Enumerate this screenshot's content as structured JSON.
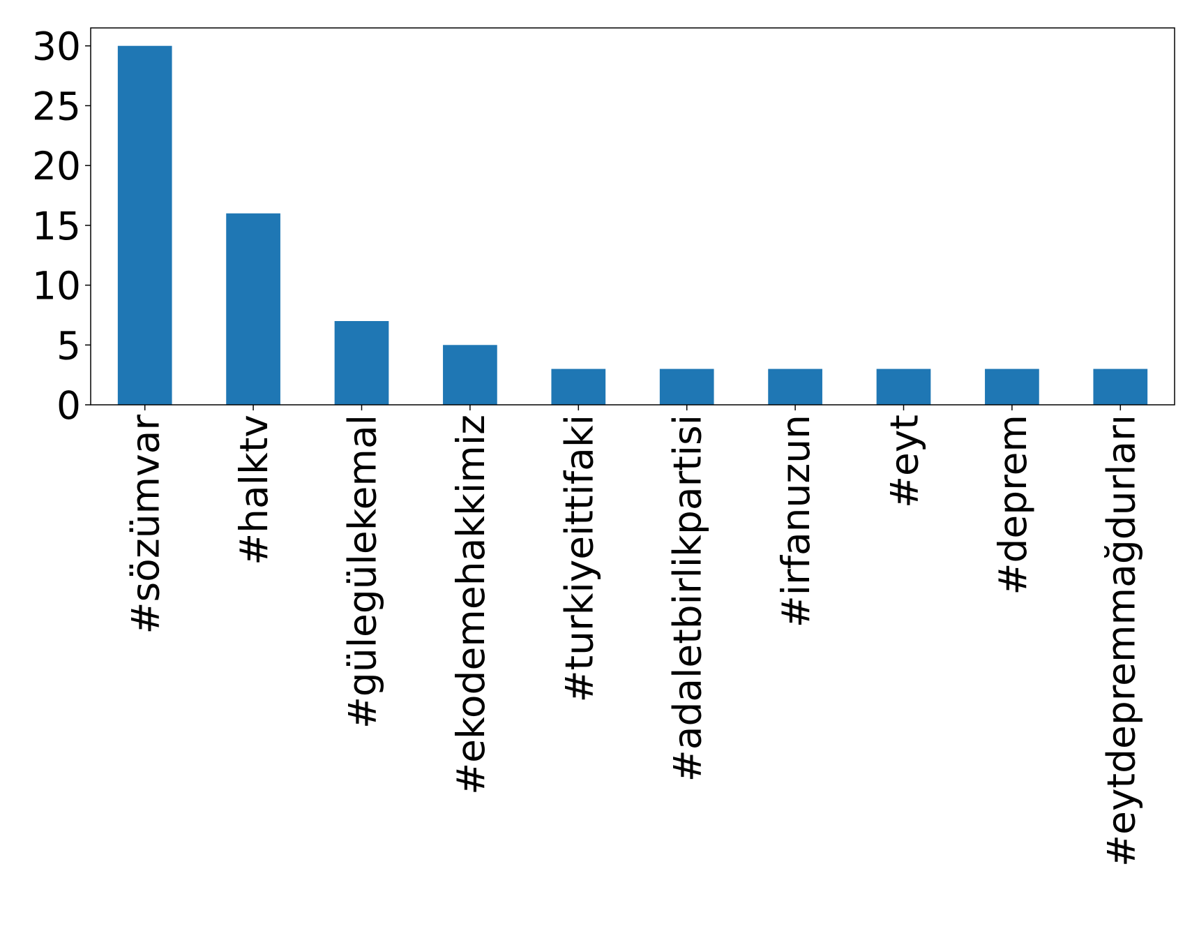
{
  "chart_data": {
    "type": "bar",
    "categories": [
      "#sözümvar",
      "#halktv",
      "#gülegülekemal",
      "#ekodemehakkimiz",
      "#turkiyeittifaki",
      "#adaletbirlikpartisi",
      "#irfanuzun",
      "#eyt",
      "#deprem",
      "#eytdepremmağdurları"
    ],
    "values": [
      30,
      16,
      7,
      5,
      3,
      3,
      3,
      3,
      3,
      3
    ],
    "color": "#1f77b4",
    "ylim": [
      0,
      31.5
    ],
    "yticks": [
      0,
      5,
      10,
      15,
      20,
      25,
      30
    ],
    "grid": false
  }
}
